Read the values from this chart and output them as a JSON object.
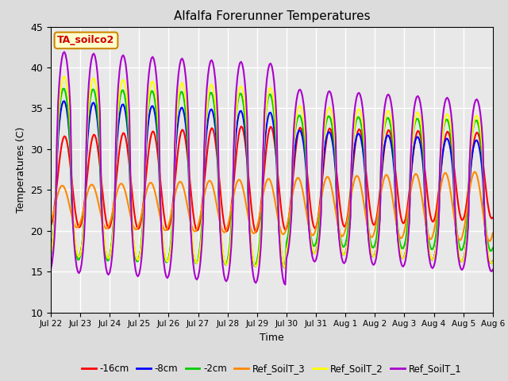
{
  "title": "Alfalfa Forerunner Temperatures",
  "xlabel": "Time",
  "ylabel": "Temperatures (C)",
  "ylim": [
    10,
    45
  ],
  "background_color": "#dcdcdc",
  "plot_bg_color": "#e8e8e8",
  "annotation_text": "TA_soilco2",
  "annotation_bg": "#ffffcc",
  "annotation_fg": "#cc0000",
  "annotation_border": "#cc8800",
  "xtick_labels": [
    "Jul 22",
    "Jul 23",
    "Jul 24",
    "Jul 25",
    "Jul 26",
    "Jul 27",
    "Jul 28",
    "Jul 29",
    "Jul 30",
    "Jul 31",
    "Aug 1",
    "Aug 2",
    "Aug 3",
    "Aug 4",
    "Aug 5",
    "Aug 6"
  ],
  "legend": [
    {
      "label": "-16cm",
      "color": "#ff0000"
    },
    {
      "label": "-8cm",
      "color": "#0000ff"
    },
    {
      "label": "-2cm",
      "color": "#00cc00"
    },
    {
      "label": "Ref_SoilT_3",
      "color": "#ff8800"
    },
    {
      "label": "Ref_SoilT_2",
      "color": "#ffff00"
    },
    {
      "label": "Ref_SoilT_1",
      "color": "#aa00cc"
    }
  ],
  "ytick_vals": [
    10,
    15,
    20,
    25,
    30,
    35,
    40,
    45
  ],
  "grid_color": "#ffffff",
  "line_width": 1.5
}
